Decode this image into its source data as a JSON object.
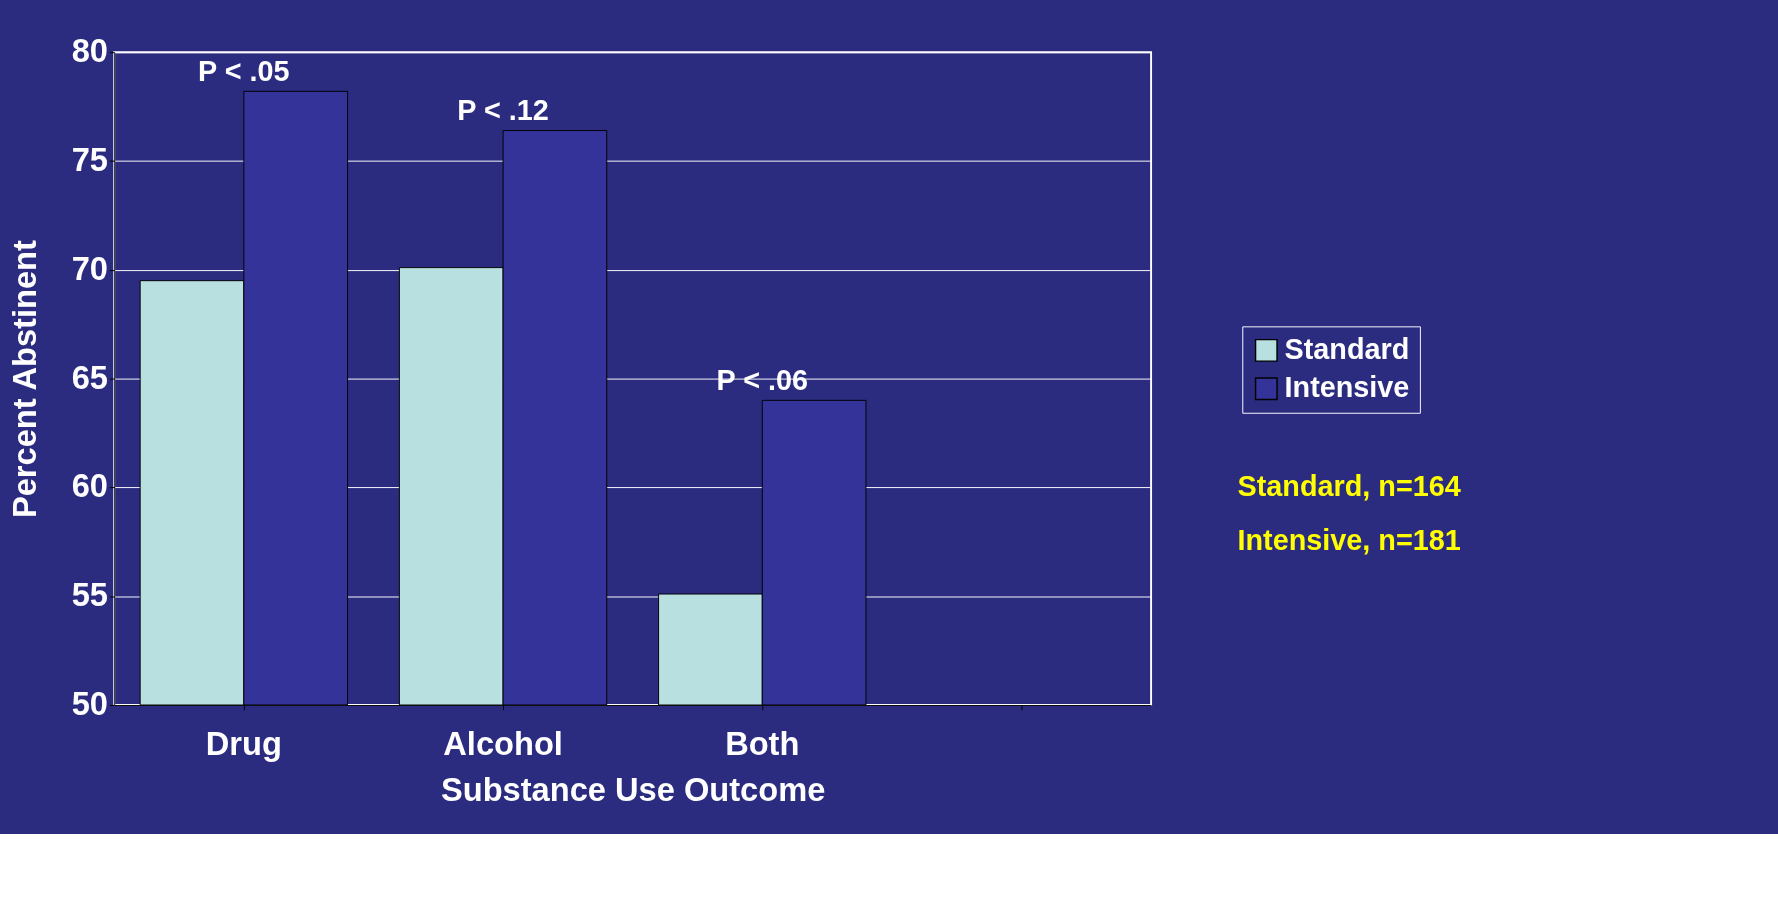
{
  "chart_data": {
    "type": "bar",
    "xlabel": "Substance Use Outcome",
    "ylabel": "Percent Abstinent",
    "categories": [
      "Drug",
      "Alcohol",
      "Both",
      null
    ],
    "series": [
      {
        "name": "Standard",
        "color": "#b8e0e0",
        "values": [
          69.5,
          70.1,
          55.1,
          null
        ]
      },
      {
        "name": "Intensive",
        "color": "#333399",
        "values": [
          78.2,
          76.4,
          64.0,
          null
        ]
      }
    ],
    "ylim": [
      50,
      80
    ],
    "yticks": [
      50,
      55,
      60,
      65,
      70,
      75,
      80
    ],
    "grid": "y",
    "legend": "right",
    "annotations": [
      {
        "text": "P < .05",
        "x": "Drug",
        "y": 78.2
      },
      {
        "text": "P < .12",
        "x": "Alcohol",
        "y": 76.4
      },
      {
        "text": "P < .06",
        "x": "Both",
        "y": 64.0
      },
      "Standard, n=164",
      "Intensive, n=181"
    ]
  }
}
